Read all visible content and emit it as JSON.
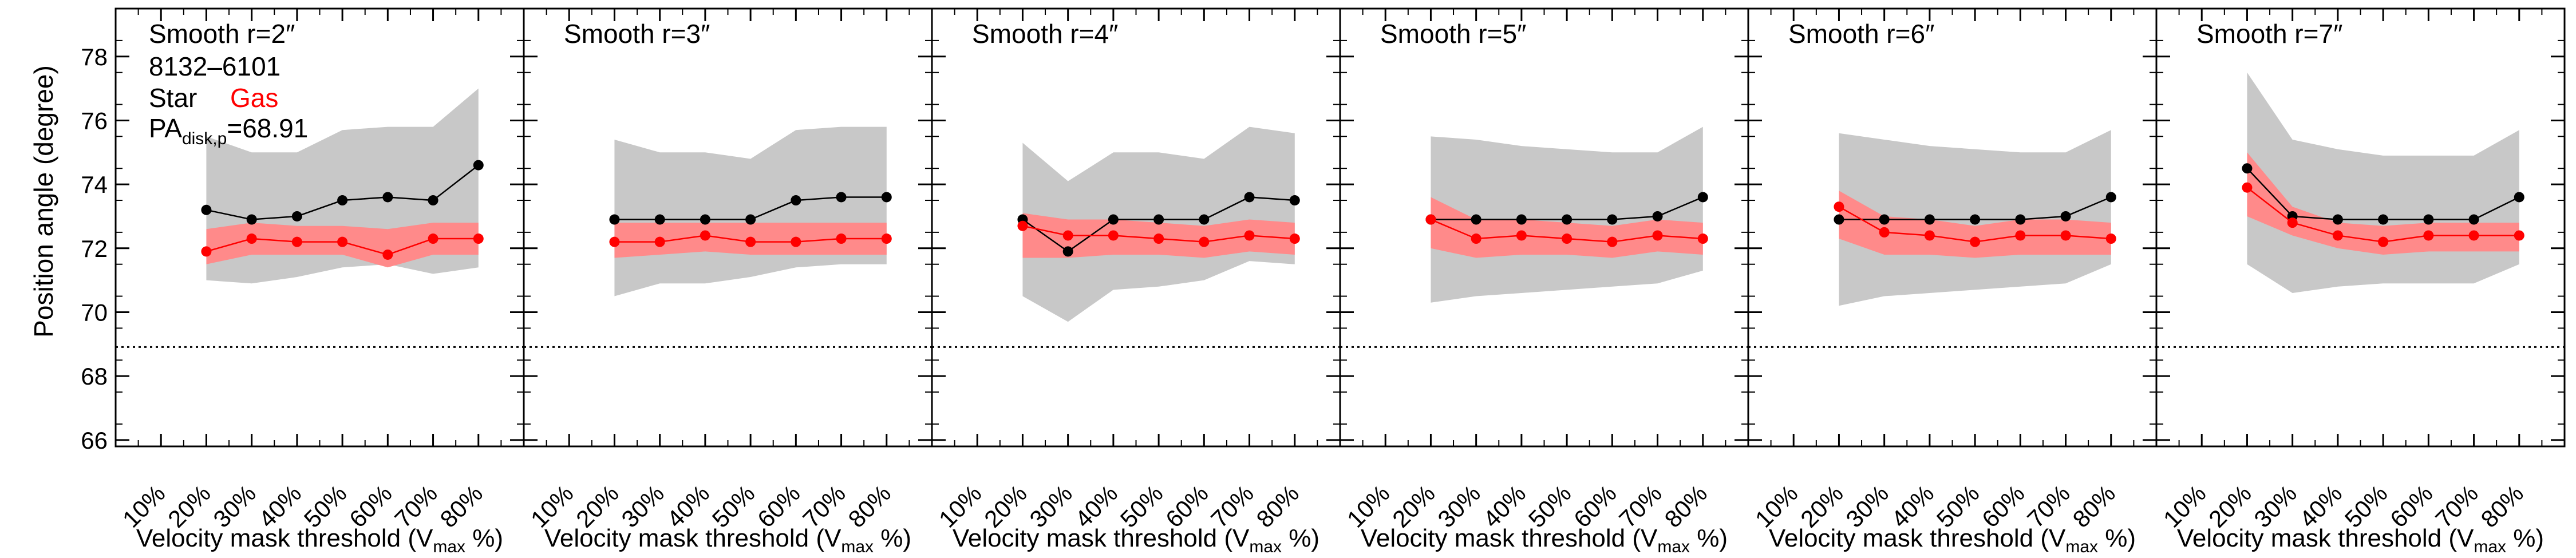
{
  "figure": {
    "ylabel": "Position angle (degree)",
    "xlabel_main": "Velocity mask threshold (V",
    "xlabel_sub": "max",
    "xlabel_end": " %)",
    "pa_disk_value": 68.91,
    "legend": {
      "id_label": "8132–6101",
      "star_label": "Star",
      "gas_label": "Gas",
      "pa_main": "PA",
      "pa_sub": "disk,p",
      "pa_value_text": "=68.91"
    },
    "colors": {
      "star": "#000000",
      "gas": "#ff0000",
      "gas_band": "#ff8a8a",
      "star_band": "#c8c8c8"
    }
  },
  "chart_data": [
    {
      "type": "line",
      "title": "Smooth r=2″",
      "categories": [
        "10%",
        "20%",
        "30%",
        "40%",
        "50%",
        "60%",
        "70%",
        "80%"
      ],
      "x": [
        20,
        30,
        40,
        50,
        60,
        70,
        80
      ],
      "ylim": [
        65.8,
        79.5
      ],
      "yticks": [
        66,
        68,
        70,
        72,
        74,
        76,
        78
      ],
      "reference_line": 68.91,
      "series": [
        {
          "name": "Star",
          "values": [
            73.2,
            72.9,
            73.0,
            73.5,
            73.6,
            73.5,
            74.6
          ],
          "band_low": [
            71.0,
            70.9,
            71.1,
            71.4,
            71.5,
            71.2,
            71.4
          ],
          "band_high": [
            75.5,
            75.0,
            75.0,
            75.7,
            75.8,
            75.8,
            77.0
          ]
        },
        {
          "name": "Gas",
          "values": [
            71.9,
            72.3,
            72.2,
            72.2,
            71.8,
            72.3,
            72.3
          ],
          "band_low": [
            71.5,
            71.8,
            71.8,
            71.8,
            71.4,
            71.8,
            71.8
          ],
          "band_high": [
            72.6,
            72.8,
            72.7,
            72.7,
            72.6,
            72.8,
            72.8
          ]
        }
      ]
    },
    {
      "type": "line",
      "title": "Smooth r=3″",
      "categories": [
        "10%",
        "20%",
        "30%",
        "40%",
        "50%",
        "60%",
        "70%",
        "80%"
      ],
      "x": [
        20,
        30,
        40,
        50,
        60,
        70,
        80
      ],
      "ylim": [
        65.8,
        79.5
      ],
      "yticks": [
        66,
        68,
        70,
        72,
        74,
        76,
        78
      ],
      "reference_line": 68.91,
      "series": [
        {
          "name": "Star",
          "values": [
            72.9,
            72.9,
            72.9,
            72.9,
            73.5,
            73.6,
            73.6
          ],
          "band_low": [
            70.5,
            70.9,
            70.9,
            71.1,
            71.4,
            71.5,
            71.5
          ],
          "band_high": [
            75.4,
            75.0,
            75.0,
            74.8,
            75.7,
            75.8,
            75.8
          ]
        },
        {
          "name": "Gas",
          "values": [
            72.2,
            72.2,
            72.4,
            72.2,
            72.2,
            72.3,
            72.3
          ],
          "band_low": [
            71.7,
            71.8,
            71.9,
            71.8,
            71.8,
            71.8,
            71.8
          ],
          "band_high": [
            72.8,
            72.8,
            72.8,
            72.8,
            72.8,
            72.8,
            72.8
          ]
        }
      ]
    },
    {
      "type": "line",
      "title": "Smooth r=4″",
      "categories": [
        "10%",
        "20%",
        "30%",
        "40%",
        "50%",
        "60%",
        "70%",
        "80%"
      ],
      "x": [
        20,
        30,
        40,
        50,
        60,
        70,
        80
      ],
      "ylim": [
        65.8,
        79.5
      ],
      "yticks": [
        66,
        68,
        70,
        72,
        74,
        76,
        78
      ],
      "reference_line": 68.91,
      "series": [
        {
          "name": "Star",
          "values": [
            72.9,
            71.9,
            72.9,
            72.9,
            72.9,
            73.6,
            73.5
          ],
          "band_low": [
            70.5,
            69.7,
            70.7,
            70.8,
            71.0,
            71.6,
            71.5
          ],
          "band_high": [
            75.3,
            74.1,
            75.0,
            75.0,
            74.8,
            75.8,
            75.6
          ]
        },
        {
          "name": "Gas",
          "values": [
            72.7,
            72.4,
            72.4,
            72.3,
            72.2,
            72.4,
            72.3
          ],
          "band_low": [
            71.7,
            71.7,
            71.8,
            71.8,
            71.7,
            71.9,
            71.8
          ],
          "band_high": [
            73.1,
            72.9,
            72.9,
            72.8,
            72.7,
            72.9,
            72.8
          ]
        }
      ]
    },
    {
      "type": "line",
      "title": "Smooth r=5″",
      "categories": [
        "10%",
        "20%",
        "30%",
        "40%",
        "50%",
        "60%",
        "70%",
        "80%"
      ],
      "x": [
        20,
        30,
        40,
        50,
        60,
        70,
        80
      ],
      "ylim": [
        65.8,
        79.5
      ],
      "yticks": [
        66,
        68,
        70,
        72,
        74,
        76,
        78
      ],
      "reference_line": 68.91,
      "series": [
        {
          "name": "Star",
          "values": [
            72.9,
            72.9,
            72.9,
            72.9,
            72.9,
            73.0,
            73.6
          ],
          "band_low": [
            70.3,
            70.5,
            70.6,
            70.7,
            70.8,
            70.9,
            71.3
          ],
          "band_high": [
            75.5,
            75.4,
            75.2,
            75.1,
            75.0,
            75.0,
            75.8
          ]
        },
        {
          "name": "Gas",
          "values": [
            72.9,
            72.3,
            72.4,
            72.3,
            72.2,
            72.4,
            72.3
          ],
          "band_low": [
            72.0,
            71.7,
            71.8,
            71.8,
            71.7,
            71.9,
            71.8
          ],
          "band_high": [
            73.6,
            72.9,
            72.9,
            72.8,
            72.7,
            72.9,
            72.8
          ]
        }
      ]
    },
    {
      "type": "line",
      "title": "Smooth r=6″",
      "categories": [
        "10%",
        "20%",
        "30%",
        "40%",
        "50%",
        "60%",
        "70%",
        "80%"
      ],
      "x": [
        20,
        30,
        40,
        50,
        60,
        70,
        80
      ],
      "ylim": [
        65.8,
        79.5
      ],
      "yticks": [
        66,
        68,
        70,
        72,
        74,
        76,
        78
      ],
      "reference_line": 68.91,
      "series": [
        {
          "name": "Star",
          "values": [
            72.9,
            72.9,
            72.9,
            72.9,
            72.9,
            73.0,
            73.6
          ],
          "band_low": [
            70.2,
            70.5,
            70.6,
            70.7,
            70.8,
            70.9,
            71.5
          ],
          "band_high": [
            75.6,
            75.4,
            75.2,
            75.1,
            75.0,
            75.0,
            75.7
          ]
        },
        {
          "name": "Gas",
          "values": [
            73.3,
            72.5,
            72.4,
            72.2,
            72.4,
            72.4,
            72.3
          ],
          "band_low": [
            72.3,
            71.8,
            71.8,
            71.7,
            71.8,
            71.8,
            71.8
          ],
          "band_high": [
            73.8,
            73.0,
            72.9,
            72.7,
            72.9,
            72.9,
            72.8
          ]
        }
      ]
    },
    {
      "type": "line",
      "title": "Smooth r=7″",
      "categories": [
        "10%",
        "20%",
        "30%",
        "40%",
        "50%",
        "60%",
        "70%",
        "80%"
      ],
      "x": [
        20,
        30,
        40,
        50,
        60,
        70,
        80
      ],
      "ylim": [
        65.8,
        79.5
      ],
      "yticks": [
        66,
        68,
        70,
        72,
        74,
        76,
        78
      ],
      "reference_line": 68.91,
      "series": [
        {
          "name": "Star",
          "values": [
            74.5,
            73.0,
            72.9,
            72.9,
            72.9,
            72.9,
            73.6
          ],
          "band_low": [
            71.5,
            70.6,
            70.8,
            70.9,
            70.9,
            70.9,
            71.5
          ],
          "band_high": [
            77.5,
            75.4,
            75.1,
            74.9,
            74.9,
            74.9,
            75.7
          ]
        },
        {
          "name": "Gas",
          "values": [
            73.9,
            72.8,
            72.4,
            72.2,
            72.4,
            72.4,
            72.4
          ],
          "band_low": [
            73.0,
            72.4,
            72.0,
            71.8,
            71.9,
            71.9,
            71.9
          ],
          "band_high": [
            75.0,
            73.3,
            72.8,
            72.7,
            72.8,
            72.8,
            72.8
          ]
        }
      ]
    }
  ]
}
